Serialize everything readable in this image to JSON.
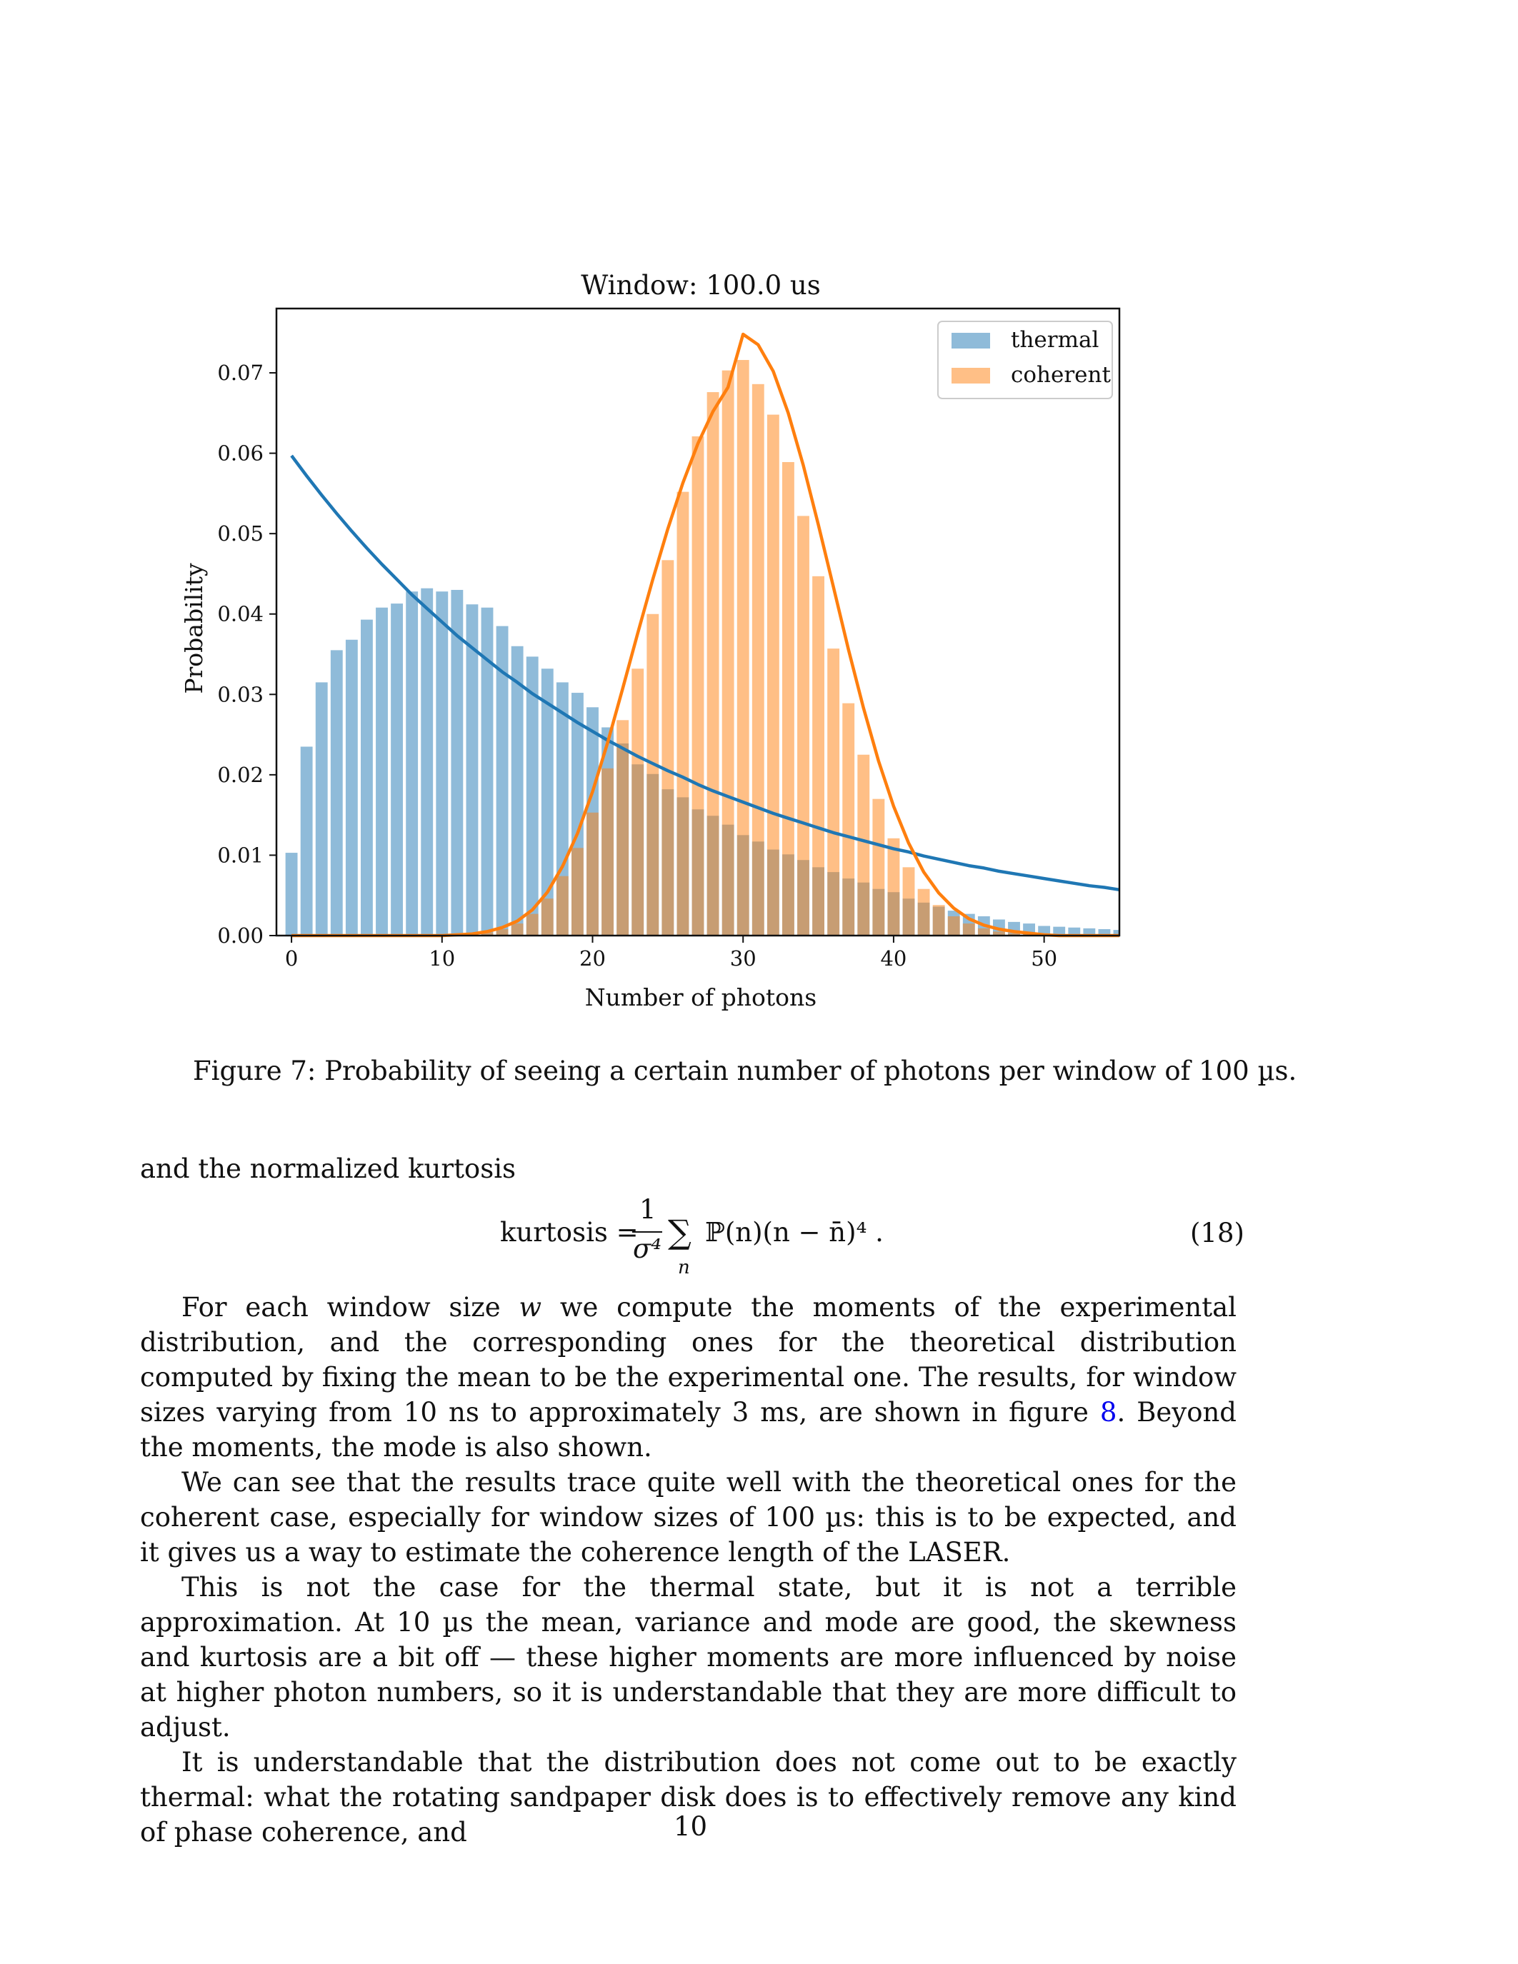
{
  "chart_data": {
    "type": "bar",
    "title": "Window: 100.0 us",
    "xlabel": "Number of photons",
    "ylabel": "Probability",
    "xlim": [
      -1,
      55
    ],
    "ylim": [
      0,
      0.078
    ],
    "x_ticks": [
      "0",
      "10",
      "20",
      "30",
      "40",
      "50"
    ],
    "y_ticks": [
      "0.00",
      "0.01",
      "0.02",
      "0.03",
      "0.04",
      "0.05",
      "0.06",
      "0.07"
    ],
    "grid": false,
    "legend": {
      "placement": "top-right",
      "entries": [
        "thermal",
        "coherent"
      ]
    },
    "colors": {
      "thermal": "#1f77b4",
      "coherent": "#ff7f0e"
    },
    "x": [
      0,
      1,
      2,
      3,
      4,
      5,
      6,
      7,
      8,
      9,
      10,
      11,
      12,
      13,
      14,
      15,
      16,
      17,
      18,
      19,
      20,
      21,
      22,
      23,
      24,
      25,
      26,
      27,
      28,
      29,
      30,
      31,
      32,
      33,
      34,
      35,
      36,
      37,
      38,
      39,
      40,
      41,
      42,
      43,
      44,
      45,
      46,
      47,
      48,
      49,
      50,
      51,
      52,
      53,
      54,
      55
    ],
    "series": [
      {
        "name": "thermal",
        "kind": "bar",
        "values": [
          0.0103,
          0.0235,
          0.0315,
          0.0355,
          0.0368,
          0.0393,
          0.0408,
          0.0413,
          0.0428,
          0.0432,
          0.0428,
          0.043,
          0.0412,
          0.0408,
          0.0385,
          0.036,
          0.0347,
          0.0332,
          0.0315,
          0.0302,
          0.0284,
          0.0259,
          0.0239,
          0.0213,
          0.0201,
          0.0182,
          0.0172,
          0.0157,
          0.0149,
          0.0138,
          0.0125,
          0.0117,
          0.0107,
          0.0101,
          0.0094,
          0.0085,
          0.0079,
          0.0071,
          0.0066,
          0.0058,
          0.0054,
          0.0046,
          0.0041,
          0.0036,
          0.0031,
          0.0027,
          0.0024,
          0.002,
          0.0017,
          0.0015,
          0.0012,
          0.0011,
          0.001,
          0.0009,
          0.0008,
          0.0007
        ]
      },
      {
        "name": "coherent",
        "kind": "bar",
        "values": [
          0,
          0,
          0,
          0,
          0,
          0,
          0,
          0,
          0,
          0,
          0,
          0.0001,
          0.0002,
          0.0004,
          0.0008,
          0.0015,
          0.0027,
          0.0046,
          0.0074,
          0.0109,
          0.0153,
          0.0208,
          0.0268,
          0.0332,
          0.04,
          0.0467,
          0.0552,
          0.0621,
          0.0676,
          0.0703,
          0.0716,
          0.0686,
          0.0648,
          0.0589,
          0.0522,
          0.0447,
          0.0357,
          0.0289,
          0.0225,
          0.017,
          0.0121,
          0.0085,
          0.0058,
          0.0038,
          0.0024,
          0.0015,
          0.0009,
          0.0005,
          0.0003,
          0.0002,
          0.0001,
          0,
          0,
          0,
          0,
          0
        ]
      },
      {
        "name": "thermal",
        "kind": "line",
        "values": [
          0.0597,
          0.0572,
          0.0548,
          0.0525,
          0.0503,
          0.0482,
          0.0462,
          0.0443,
          0.0424,
          0.0407,
          0.039,
          0.0373,
          0.0358,
          0.0343,
          0.0328,
          0.0315,
          0.0301,
          0.0289,
          0.0277,
          0.0265,
          0.0254,
          0.0243,
          0.0233,
          0.0223,
          0.0214,
          0.0205,
          0.0197,
          0.0188,
          0.018,
          0.0173,
          0.0166,
          0.0159,
          0.0152,
          0.0146,
          0.014,
          0.0134,
          0.0128,
          0.0123,
          0.0118,
          0.0113,
          0.0108,
          0.0104,
          0.0099,
          0.0095,
          0.0091,
          0.0087,
          0.0084,
          0.008,
          0.0077,
          0.0074,
          0.0071,
          0.0068,
          0.0065,
          0.0062,
          0.006,
          0.0057
        ]
      },
      {
        "name": "coherent",
        "kind": "line",
        "values": [
          0,
          0,
          0,
          0,
          0,
          0,
          0,
          0,
          0,
          0,
          0,
          0.0001,
          0.0002,
          0.0005,
          0.001,
          0.0018,
          0.0032,
          0.0054,
          0.0086,
          0.0127,
          0.0179,
          0.024,
          0.0307,
          0.0376,
          0.0443,
          0.0506,
          0.0563,
          0.0612,
          0.0652,
          0.0682,
          0.0748,
          0.0735,
          0.0702,
          0.065,
          0.0585,
          0.0511,
          0.0434,
          0.0356,
          0.0283,
          0.0217,
          0.0161,
          0.0115,
          0.0079,
          0.0053,
          0.0034,
          0.0021,
          0.0013,
          0.0008,
          0.0005,
          0.0003,
          0.0001,
          0,
          0,
          0,
          0,
          0
        ]
      }
    ]
  },
  "figure": {
    "caption": "Figure 7: Probability of seeing a certain number of photons per window of 100 µs."
  },
  "text": {
    "intro": "and the normalized kurtosis",
    "equation": {
      "lhs": "kurtosis =",
      "frac_num": "1",
      "frac_den": "σ⁴",
      "sum": "∑",
      "sum_sub": "n",
      "body": "ℙ(n)(n − n̄)⁴ .",
      "number": "(18)"
    },
    "p1": "For each window size w we compute the moments of the experimental distribution, and the corresponding ones for the theoretical distribution computed by fixing the mean to be the experimental one. The results, for window sizes varying from 10 ns to approximately 3 ms, are shown in figure 8. Beyond the moments, the mode is also shown.",
    "p1_parts": {
      "a": "For each window size ",
      "w": "w",
      "b": " we compute the moments of the experimental distribution, and the corresponding ones for the theoretical distribution computed by fixing the mean to be the experimental one. The results, for window sizes varying from 10 ns to approximately 3 ms, are shown in figure ",
      "ref": "8",
      "c": ". Beyond the moments, the mode is also shown."
    },
    "p2": "We can see that the results trace quite well with the theoretical ones for the coherent case, especially for window sizes of 100 µs: this is to be expected, and it gives us a way to estimate the coherence length of the LASER.",
    "p3": "This is not the case for the thermal state, but it is not a terrible approximation. At 10 µs the mean, variance and mode are good, the skewness and kurtosis are a bit off — these higher moments are more influenced by noise at higher photon numbers, so it is understandable that they are more difficult to adjust.",
    "p4": "It is understandable that the distribution does not come out to be exactly thermal: what the rotating sandpaper disk does is to effectively remove any kind of phase coherence, and",
    "page_number": "10"
  }
}
